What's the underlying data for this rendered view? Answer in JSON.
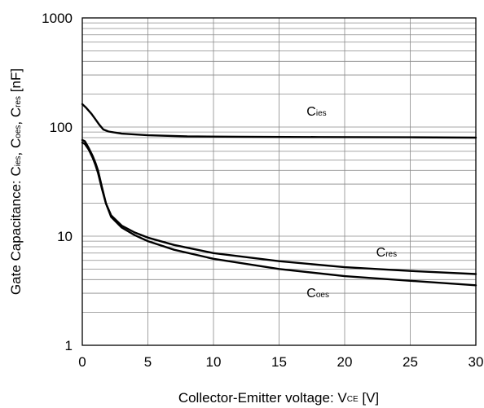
{
  "chart_data": {
    "type": "line",
    "title": "",
    "xlabel": {
      "main": "Collector-Emitter voltage: V",
      "sub": "CE",
      "unit": "[V]"
    },
    "ylabel": {
      "parts": [
        {
          "main": "Gate Capacitance: C",
          "sub": "ies"
        },
        {
          "main": ",  C",
          "sub": "oes"
        },
        {
          "main": ",  C",
          "sub": "res"
        }
      ],
      "unit": " [nF]"
    },
    "xlim": [
      0,
      30
    ],
    "ylim": [
      1,
      1000
    ],
    "yscale": "log",
    "grid": true,
    "x_ticks": [
      "0",
      "5",
      "10",
      "15",
      "20",
      "25",
      "30"
    ],
    "y_ticks": [
      "1",
      "10",
      "100",
      "1000"
    ],
    "series": [
      {
        "name": "Cies",
        "label_main": "C",
        "label_sub": "ies",
        "label_at": [
          17.1,
          127
        ],
        "x": [
          0,
          0.3,
          0.7,
          1.0,
          1.3,
          1.6,
          2.0,
          3.0,
          5.0,
          8.0,
          12.0,
          18.0,
          25.0,
          30.0
        ],
        "y": [
          162,
          150,
          132,
          118,
          105,
          95,
          91,
          87,
          84,
          82,
          81.5,
          81,
          80.5,
          80
        ]
      },
      {
        "name": "Cres",
        "label_main": "C",
        "label_sub": "res",
        "label_at": [
          22.4,
          6.5
        ],
        "x": [
          0,
          0.2,
          0.5,
          0.8,
          1.0,
          1.2,
          1.5,
          1.8,
          2.2,
          3.0,
          4.0,
          5.0,
          7.0,
          10.0,
          15.0,
          20.0,
          25.0,
          30.0
        ],
        "y": [
          76,
          74,
          64,
          54,
          47,
          40,
          28,
          20,
          15.5,
          12.5,
          10.8,
          9.7,
          8.3,
          7.0,
          5.9,
          5.2,
          4.8,
          4.5
        ]
      },
      {
        "name": "Coes",
        "label_main": "C",
        "label_sub": "oes",
        "label_at": [
          17.1,
          2.75
        ],
        "x": [
          0,
          0.2,
          0.5,
          0.8,
          1.0,
          1.2,
          1.5,
          1.8,
          2.2,
          3.0,
          4.0,
          5.0,
          7.0,
          10.0,
          15.0,
          20.0,
          25.0,
          30.0
        ],
        "y": [
          72,
          70,
          62,
          52,
          45,
          38,
          27,
          20,
          15,
          12,
          10.2,
          9.0,
          7.5,
          6.2,
          5.0,
          4.3,
          3.9,
          3.55
        ]
      }
    ]
  }
}
